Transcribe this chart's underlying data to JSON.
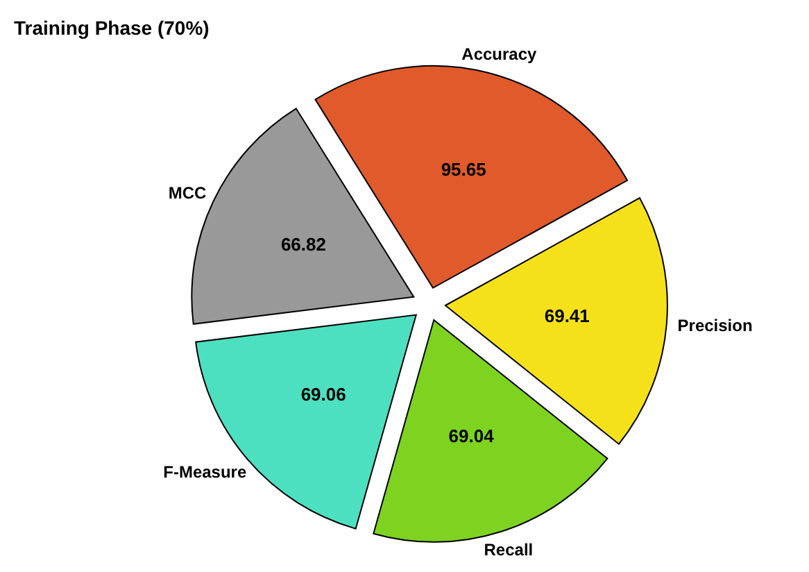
{
  "chart_data": {
    "type": "pie",
    "title": "Training Phase (70%)",
    "categories": [
      "Accuracy",
      "Precision",
      "Recall",
      "F-Measure",
      "MCC"
    ],
    "values": [
      95.65,
      69.41,
      69.04,
      69.06,
      66.82
    ],
    "colors": [
      "#e05a2b",
      "#f5e11a",
      "#7ed321",
      "#4de0c0",
      "#999999"
    ],
    "data_labels": true
  }
}
